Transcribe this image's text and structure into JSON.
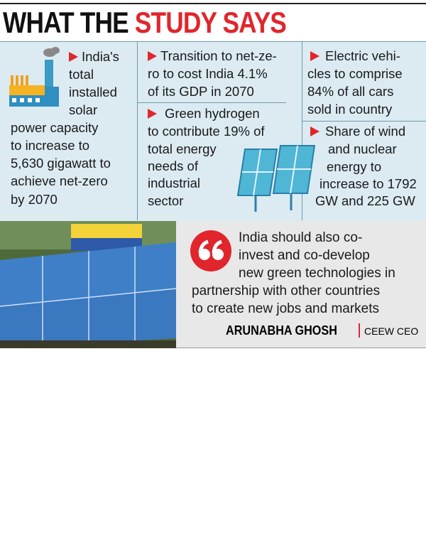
{
  "header": {
    "title": [
      "WHAT THE",
      "STUDY SAYS"
    ]
  },
  "facts": [
    {
      "lines": [
        "India's",
        "total",
        "installed",
        "solar",
        "power capacity",
        "to increase to",
        "5,630 gigawatt to",
        "achieve net-zero",
        "by 2070"
      ]
    },
    {
      "lines": [
        "Transition to net-ze-",
        "ro to cost India 4.1%",
        "of its GDP in 2070"
      ]
    },
    {
      "lines": [
        "Green hydrogen",
        "to contribute 19% of",
        "total energy",
        "needs of",
        "industrial",
        "sector"
      ]
    },
    {
      "lines": [
        "Electric vehi-",
        "cles to comprise",
        "84% of all cars",
        "sold in country"
      ]
    },
    {
      "lines": [
        "Share of wind",
        "and nuclear",
        "energy to",
        "increase to 1792",
        "GW and 225 GW"
      ]
    }
  ],
  "quote": {
    "lines": [
      "India should also co-",
      "invest and co-develop",
      "new green technologies in",
      "partnership with other countries",
      "to create new jobs and markets"
    ],
    "name": "ARUNABHA GHOSH",
    "role": "CEEW CEO"
  }
}
